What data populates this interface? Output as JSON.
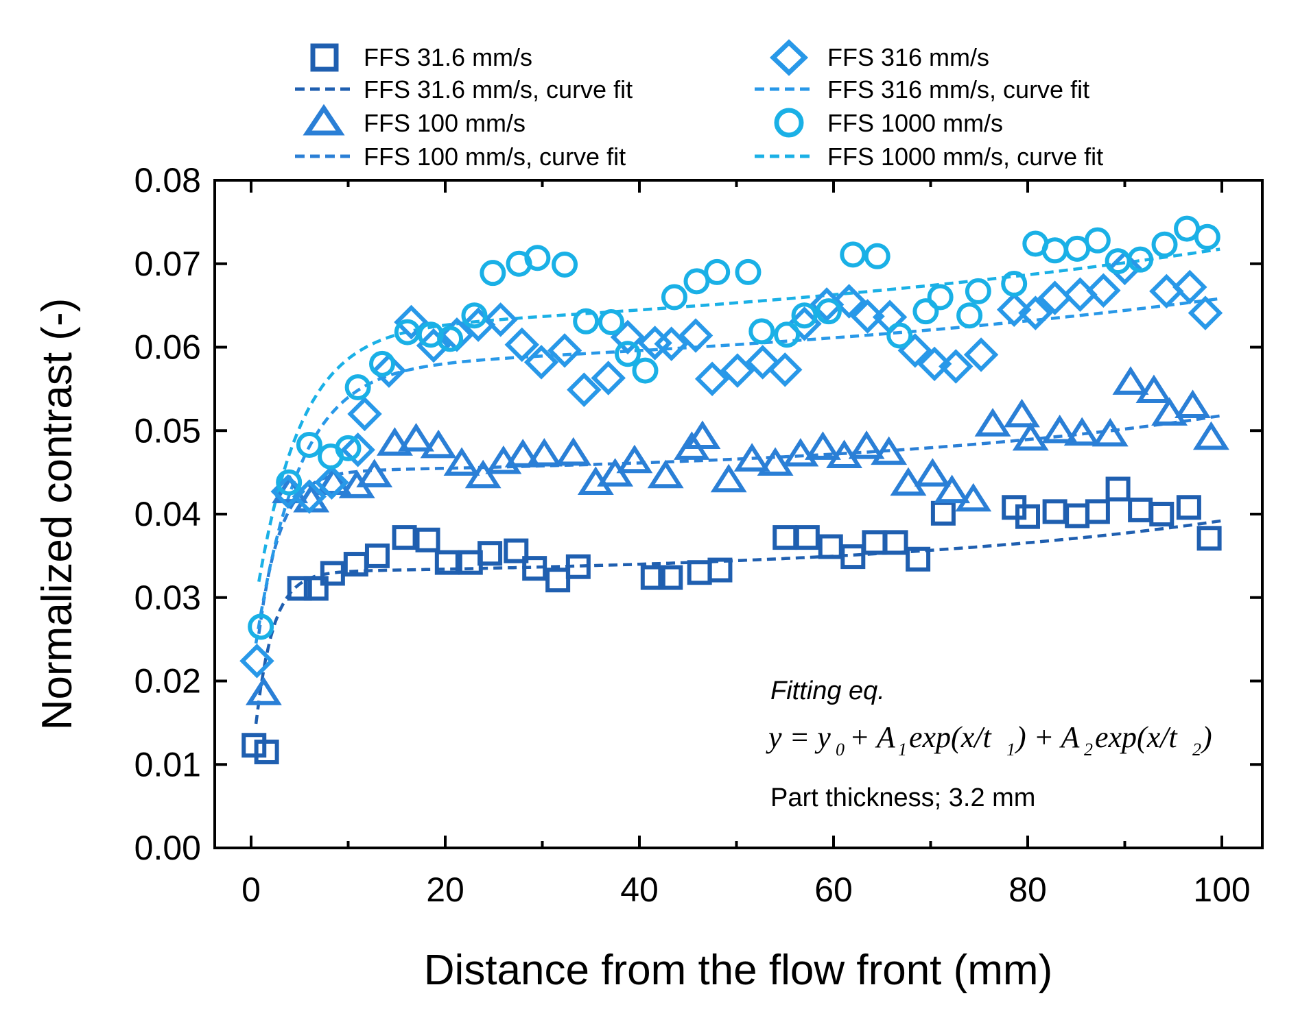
{
  "chart_data": {
    "type": "scatter",
    "title": "",
    "xlabel": "Distance from the flow front (mm)",
    "ylabel": "Normalized contrast (-)",
    "xlim": [
      -4,
      104
    ],
    "ylim": [
      0.0,
      0.08
    ],
    "xticks": [
      "0",
      "20",
      "40",
      "60",
      "80",
      "100"
    ],
    "yticks": [
      "0.00",
      "0.01",
      "0.02",
      "0.03",
      "0.04",
      "0.05",
      "0.06",
      "0.07",
      "0.08"
    ],
    "legend_position": "top",
    "legend": [
      "FFS 31.6 mm/s",
      "FFS 31.6 mm/s, curve fit",
      "FFS 100 mm/s",
      "FFS 100 mm/s, curve fit",
      "FFS 316 mm/s",
      "FFS 316 mm/s, curve fit",
      "FFS 1000 mm/s",
      "FFS 1000 mm/s, curve fit"
    ],
    "annotations": {
      "fitting_title": "Fitting eq.",
      "equation": "y = y0 + A1exp(x/t1) + A2exp(x/t2)",
      "part_thickness": "Part thickness; 3.2 mm"
    },
    "series": [
      {
        "name": "FFS 31.6 mm/s",
        "marker": "square",
        "color": "#1f5fb0",
        "points": [
          [
            0.3,
            0.0123
          ],
          [
            1.6,
            0.0115
          ],
          [
            5.0,
            0.0311
          ],
          [
            6.7,
            0.0311
          ],
          [
            8.4,
            0.0329
          ],
          [
            10.8,
            0.034
          ],
          [
            13.0,
            0.035
          ],
          [
            15.8,
            0.0372
          ],
          [
            18.2,
            0.0369
          ],
          [
            20.2,
            0.0342
          ],
          [
            22.6,
            0.0342
          ],
          [
            24.6,
            0.0353
          ],
          [
            27.3,
            0.0356
          ],
          [
            29.2,
            0.0335
          ],
          [
            31.6,
            0.0321
          ],
          [
            33.7,
            0.0337
          ],
          [
            41.4,
            0.0324
          ],
          [
            43.2,
            0.0324
          ],
          [
            46.2,
            0.033
          ],
          [
            48.3,
            0.0333
          ],
          [
            55.0,
            0.0372
          ],
          [
            57.3,
            0.0372
          ],
          [
            59.7,
            0.0361
          ],
          [
            62.0,
            0.0349
          ],
          [
            64.2,
            0.0366
          ],
          [
            66.4,
            0.0366
          ],
          [
            68.7,
            0.0346
          ],
          [
            71.3,
            0.0401
          ],
          [
            78.6,
            0.0408
          ],
          [
            80.0,
            0.0397
          ],
          [
            82.8,
            0.0403
          ],
          [
            85.1,
            0.0398
          ],
          [
            87.2,
            0.0403
          ],
          [
            89.3,
            0.043
          ],
          [
            91.6,
            0.0405
          ],
          [
            93.8,
            0.04
          ],
          [
            96.6,
            0.0408
          ],
          [
            98.7,
            0.0371
          ]
        ]
      },
      {
        "name": "FFS 100 mm/s",
        "marker": "triangle",
        "color": "#2a7fd6",
        "points": [
          [
            1.3,
            0.0185
          ],
          [
            4.0,
            0.0427
          ],
          [
            6.2,
            0.0416
          ],
          [
            8.5,
            0.0437
          ],
          [
            10.9,
            0.0433
          ],
          [
            12.7,
            0.0446
          ],
          [
            14.8,
            0.0484
          ],
          [
            17.0,
            0.0489
          ],
          [
            19.3,
            0.0481
          ],
          [
            21.7,
            0.046
          ],
          [
            23.9,
            0.0445
          ],
          [
            26.0,
            0.0462
          ],
          [
            28.0,
            0.047
          ],
          [
            30.2,
            0.0471
          ],
          [
            33.2,
            0.0472
          ],
          [
            35.5,
            0.0437
          ],
          [
            37.5,
            0.0447
          ],
          [
            39.5,
            0.0463
          ],
          [
            42.7,
            0.0445
          ],
          [
            45.4,
            0.0479
          ],
          [
            46.5,
            0.0492
          ],
          [
            49.2,
            0.044
          ],
          [
            51.6,
            0.0465
          ],
          [
            54.0,
            0.046
          ],
          [
            56.6,
            0.0471
          ],
          [
            58.9,
            0.0479
          ],
          [
            61.1,
            0.0469
          ],
          [
            63.4,
            0.048
          ],
          [
            65.7,
            0.0473
          ],
          [
            67.7,
            0.0436
          ],
          [
            70.2,
            0.0447
          ],
          [
            72.2,
            0.0427
          ],
          [
            74.4,
            0.0417
          ],
          [
            76.4,
            0.0507
          ],
          [
            79.4,
            0.0518
          ],
          [
            80.3,
            0.049
          ],
          [
            83.3,
            0.0499
          ],
          [
            85.6,
            0.0496
          ],
          [
            88.5,
            0.0495
          ],
          [
            90.6,
            0.0557
          ],
          [
            93.0,
            0.0547
          ],
          [
            94.6,
            0.052
          ],
          [
            97.0,
            0.0529
          ],
          [
            98.9,
            0.0491
          ]
        ]
      },
      {
        "name": "FFS 316 mm/s",
        "marker": "diamond",
        "color": "#2898e8",
        "points": [
          [
            0.6,
            0.0224
          ],
          [
            3.8,
            0.0427
          ],
          [
            6.0,
            0.0421
          ],
          [
            8.3,
            0.0438
          ],
          [
            11.0,
            0.0477
          ],
          [
            11.7,
            0.052
          ],
          [
            14.2,
            0.0572
          ],
          [
            16.5,
            0.063
          ],
          [
            18.8,
            0.0602
          ],
          [
            21.2,
            0.0615
          ],
          [
            23.4,
            0.0627
          ],
          [
            25.7,
            0.0633
          ],
          [
            27.9,
            0.0603
          ],
          [
            29.9,
            0.0582
          ],
          [
            32.3,
            0.0596
          ],
          [
            34.3,
            0.0549
          ],
          [
            36.8,
            0.0563
          ],
          [
            38.8,
            0.0612
          ],
          [
            41.6,
            0.0605
          ],
          [
            43.3,
            0.0604
          ],
          [
            45.8,
            0.0614
          ],
          [
            47.5,
            0.0562
          ],
          [
            50.1,
            0.0572
          ],
          [
            52.7,
            0.0582
          ],
          [
            55.0,
            0.0573
          ],
          [
            57.0,
            0.0628
          ],
          [
            59.3,
            0.0651
          ],
          [
            61.6,
            0.0655
          ],
          [
            63.5,
            0.0637
          ],
          [
            65.8,
            0.0636
          ],
          [
            68.4,
            0.0596
          ],
          [
            70.4,
            0.058
          ],
          [
            72.6,
            0.0577
          ],
          [
            75.2,
            0.0591
          ],
          [
            78.6,
            0.0645
          ],
          [
            80.8,
            0.0641
          ],
          [
            82.8,
            0.0659
          ],
          [
            85.4,
            0.0663
          ],
          [
            87.8,
            0.0668
          ],
          [
            90.0,
            0.0695
          ],
          [
            94.3,
            0.0667
          ],
          [
            96.7,
            0.0672
          ],
          [
            98.3,
            0.0641
          ]
        ]
      },
      {
        "name": "FFS 1000 mm/s",
        "marker": "circle",
        "color": "#1ab0e6",
        "points": [
          [
            1.0,
            0.0265
          ],
          [
            3.9,
            0.0438
          ],
          [
            6.0,
            0.0483
          ],
          [
            8.2,
            0.0469
          ],
          [
            10.0,
            0.0479
          ],
          [
            11.0,
            0.0552
          ],
          [
            13.5,
            0.058
          ],
          [
            16.1,
            0.0618
          ],
          [
            18.5,
            0.0615
          ],
          [
            20.5,
            0.061
          ],
          [
            23.0,
            0.0638
          ],
          [
            24.9,
            0.0689
          ],
          [
            27.6,
            0.07
          ],
          [
            29.5,
            0.0707
          ],
          [
            32.3,
            0.0699
          ],
          [
            34.5,
            0.0631
          ],
          [
            37.1,
            0.063
          ],
          [
            38.8,
            0.0592
          ],
          [
            40.6,
            0.0572
          ],
          [
            43.6,
            0.066
          ],
          [
            45.9,
            0.0679
          ],
          [
            48.0,
            0.069
          ],
          [
            51.2,
            0.069
          ],
          [
            52.6,
            0.0619
          ],
          [
            55.2,
            0.0615
          ],
          [
            57.0,
            0.0638
          ],
          [
            59.5,
            0.0643
          ],
          [
            62.0,
            0.0711
          ],
          [
            64.5,
            0.0709
          ],
          [
            66.8,
            0.0614
          ],
          [
            69.5,
            0.0643
          ],
          [
            71.0,
            0.066
          ],
          [
            74.0,
            0.0638
          ],
          [
            74.9,
            0.0667
          ],
          [
            78.6,
            0.0676
          ],
          [
            80.8,
            0.0724
          ],
          [
            82.8,
            0.0716
          ],
          [
            85.1,
            0.0718
          ],
          [
            87.2,
            0.0728
          ],
          [
            89.3,
            0.0703
          ],
          [
            91.6,
            0.0705
          ],
          [
            94.1,
            0.0723
          ],
          [
            96.4,
            0.0742
          ],
          [
            98.5,
            0.0732
          ]
        ]
      }
    ],
    "fits": [
      {
        "name": "FFS 31.6 mm/s, curve fit",
        "color": "#1f5fb0",
        "y0": 0.0325,
        "A1": -0.024,
        "t1": 1.8,
        "A2": 0.00055,
        "t2": 40,
        "x_start": 0.5
      },
      {
        "name": "FFS 100 mm/s, curve fit",
        "color": "#2a7fd6",
        "y0": 0.0445,
        "A1": -0.028,
        "t1": 2.2,
        "A2": 0.0006,
        "t2": 40,
        "x_start": 0.8
      },
      {
        "name": "FFS 316 mm/s, curve fit",
        "color": "#2898e8",
        "y0": 0.055,
        "A1": -0.037,
        "t1": 4.5,
        "A2": 0.0026,
        "t2": 70,
        "x_start": 0.5
      },
      {
        "name": "FFS 1000 mm/s, curve fit",
        "color": "#1ab0e6",
        "y0": 0.0585,
        "A1": -0.036,
        "t1": 4.5,
        "A2": 0.0035,
        "t2": 75,
        "x_start": 0.8
      }
    ]
  }
}
